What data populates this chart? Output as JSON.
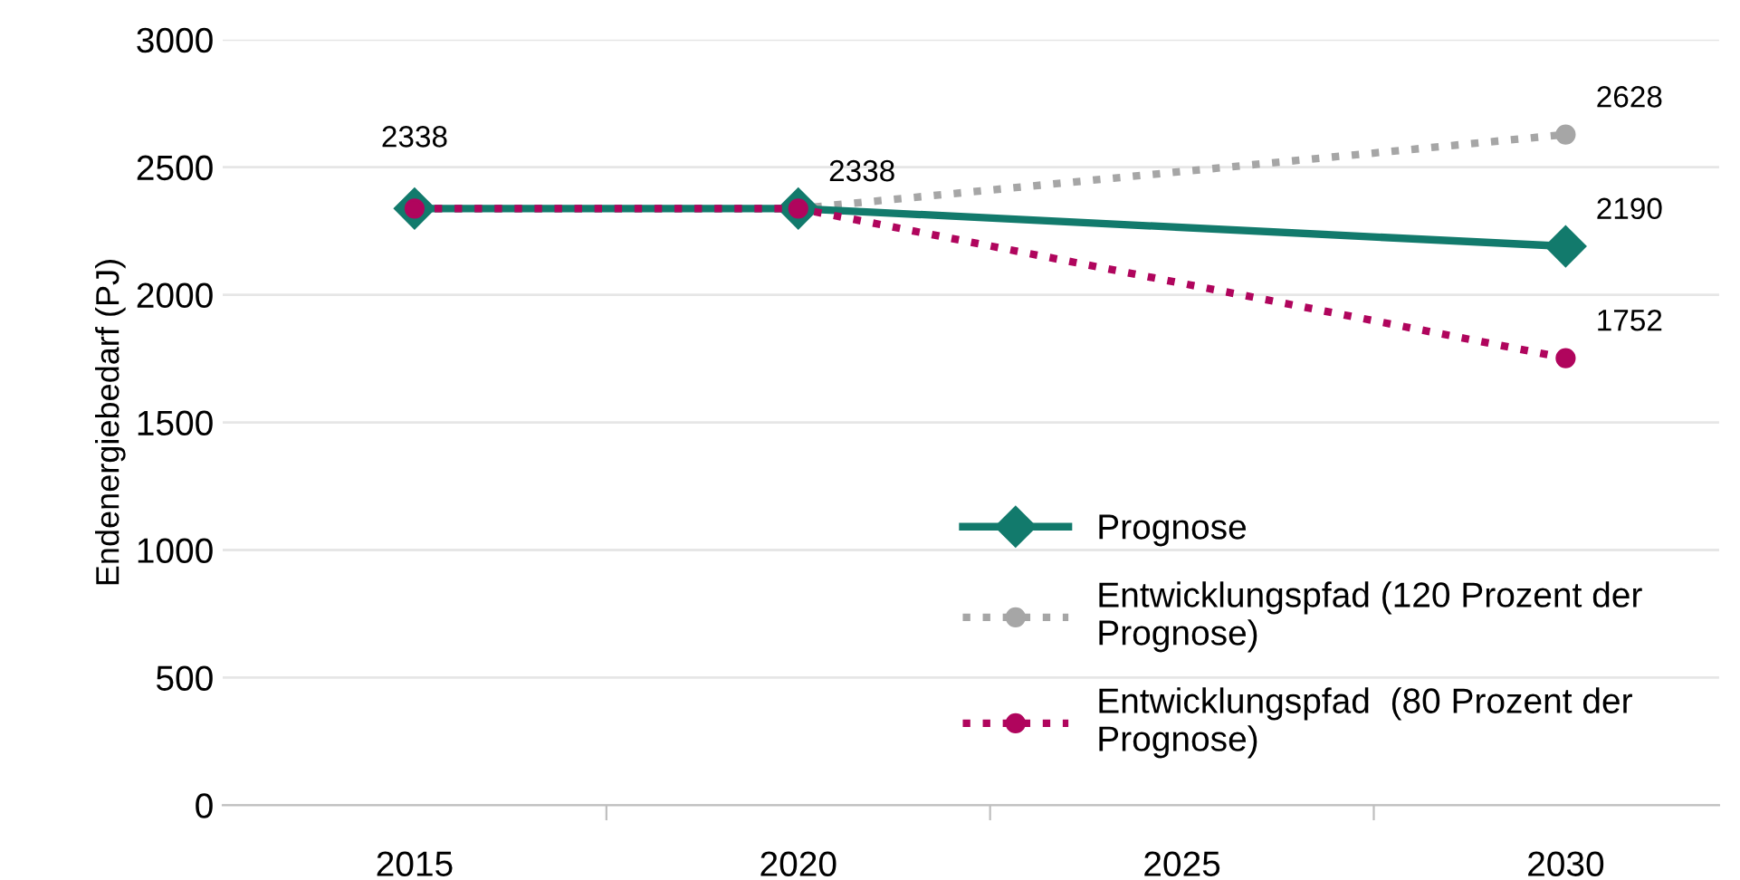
{
  "chart_data": {
    "type": "line",
    "ylabel": "Endenergiebedarf (PJ)",
    "xlim": [
      2012.5,
      2032
    ],
    "xticks": [
      {
        "value": 2015,
        "label": "2015"
      },
      {
        "value": 2017.5,
        "label": null
      },
      {
        "value": 2020,
        "label": "2020"
      },
      {
        "value": 2022.5,
        "label": null
      },
      {
        "value": 2025,
        "label": "2025"
      },
      {
        "value": 2027.5,
        "label": null
      },
      {
        "value": 2030,
        "label": "2030"
      }
    ],
    "ylim": [
      0,
      3000
    ],
    "yticks": [
      0,
      500,
      1000,
      1500,
      2000,
      2500,
      3000
    ],
    "grid": "y",
    "legend": "lower right",
    "series": [
      {
        "name": "Prognose",
        "color": "#127a6c",
        "x": [
          2015,
          2020,
          2030
        ],
        "values": [
          2338,
          2338,
          2190
        ],
        "marker": "diamond",
        "line_style": "solid",
        "value_labels": [
          "2338",
          "2338",
          "2190"
        ]
      },
      {
        "name": "Entwicklungspfad (120 Prozent der Prognose)",
        "color": "#a6a6a6",
        "x": [
          2015,
          2020,
          2030
        ],
        "values": [
          2338,
          2338,
          2628
        ],
        "marker": "circle",
        "line_style": "dotted",
        "value_labels": [
          null,
          null,
          "2628"
        ]
      },
      {
        "name": "Entwicklungspfad  (80 Prozent der Prognose)",
        "color": "#b0055d",
        "x": [
          2015,
          2020,
          2030
        ],
        "values": [
          2338,
          2338,
          1752
        ],
        "marker": "circle",
        "line_style": "dotted",
        "value_labels": [
          null,
          null,
          "1752"
        ]
      }
    ]
  }
}
